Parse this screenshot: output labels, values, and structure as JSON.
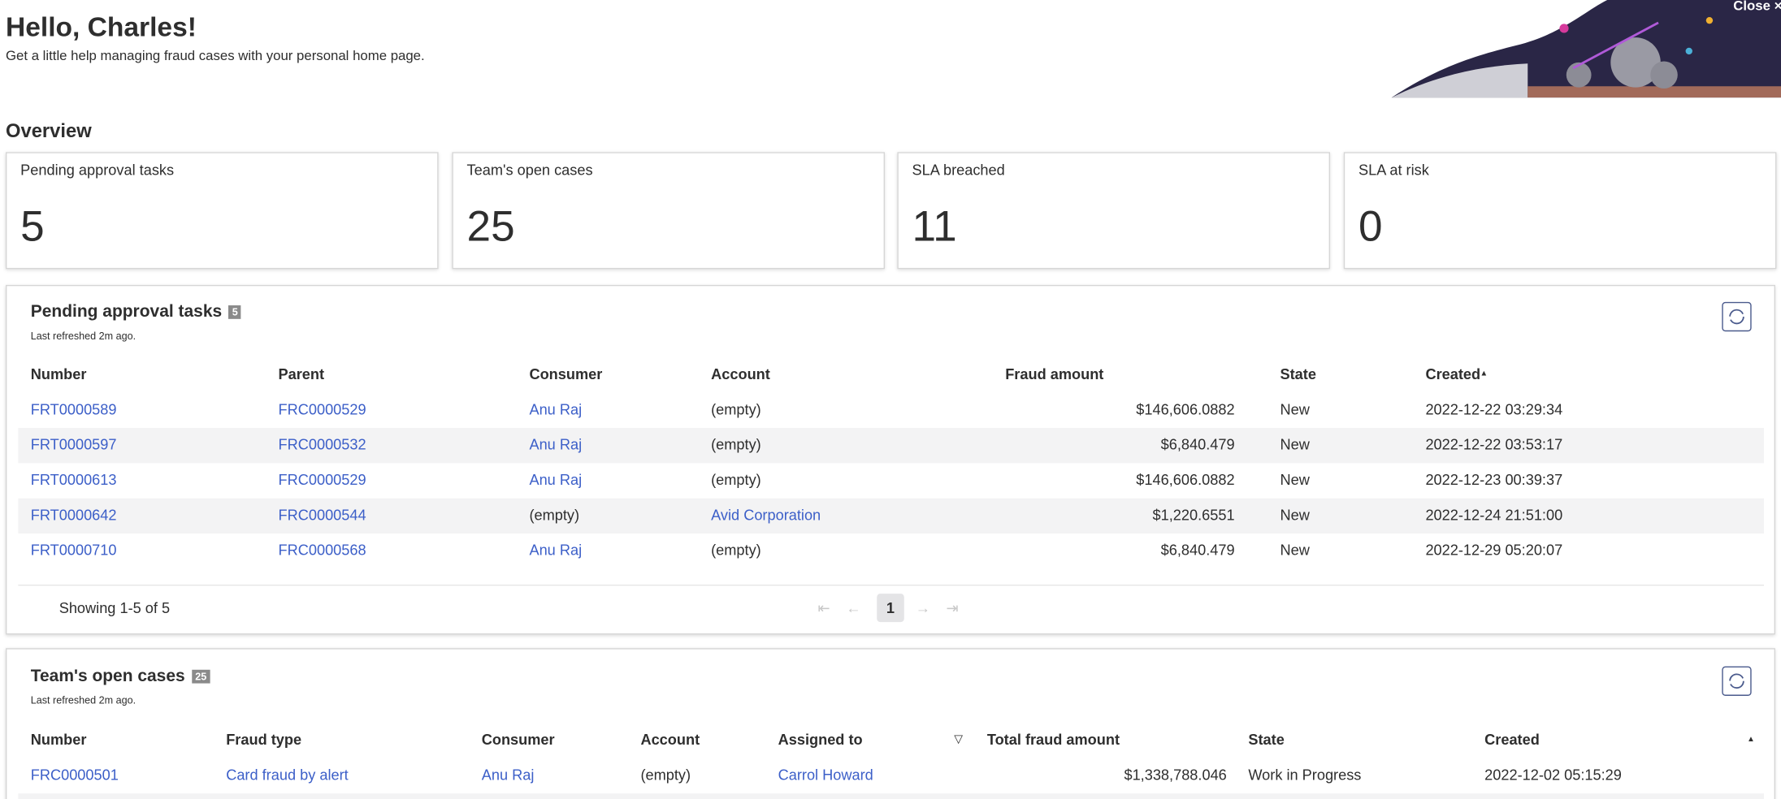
{
  "header": {
    "greeting": "Hello, Charles!",
    "subtitle": "Get a little help managing fraud cases with your personal home page.",
    "close": "Close"
  },
  "overview": {
    "title": "Overview",
    "cards": [
      {
        "label": "Pending approval tasks",
        "value": "5"
      },
      {
        "label": "Team's open cases",
        "value": "25"
      },
      {
        "label": "SLA breached",
        "value": "11"
      },
      {
        "label": "SLA at risk",
        "value": "0"
      }
    ]
  },
  "pending": {
    "title": "Pending approval tasks",
    "badge": "5",
    "refreshed": "Last refreshed 2m ago.",
    "columns": [
      "Number",
      "Parent",
      "Consumer",
      "Account",
      "Fraud amount",
      "State",
      "Created"
    ],
    "rows": [
      [
        "FRT0000589",
        "FRC0000529",
        "Anu Raj",
        "(empty)",
        "$146,606.0882",
        "New",
        "2022-12-22 03:29:34"
      ],
      [
        "FRT0000597",
        "FRC0000532",
        "Anu Raj",
        "(empty)",
        "$6,840.479",
        "New",
        "2022-12-22 03:53:17"
      ],
      [
        "FRT0000613",
        "FRC0000529",
        "Anu Raj",
        "(empty)",
        "$146,606.0882",
        "New",
        "2022-12-23 00:39:37"
      ],
      [
        "FRT0000642",
        "FRC0000544",
        "(empty)",
        "Avid Corporation",
        "$1,220.6551",
        "New",
        "2022-12-24 21:51:00"
      ],
      [
        "FRT0000710",
        "FRC0000568",
        "Anu Raj",
        "(empty)",
        "$6,840.479",
        "New",
        "2022-12-29 05:20:07"
      ]
    ],
    "showing": "Showing 1-5 of 5",
    "page": "1"
  },
  "team": {
    "title": "Team's open cases",
    "badge": "25",
    "refreshed": "Last refreshed 2m ago.",
    "columns": [
      "Number",
      "Fraud type",
      "Consumer",
      "Account",
      "Assigned to",
      "Total fraud amount",
      "State",
      "Created"
    ],
    "rows": [
      [
        "FRC0000501",
        "Card fraud by alert",
        "Anu Raj",
        "(empty)",
        "Carrol Howard",
        "$1,338,788.046",
        "Work in Progress",
        "2022-12-02 05:15:29"
      ]
    ]
  }
}
